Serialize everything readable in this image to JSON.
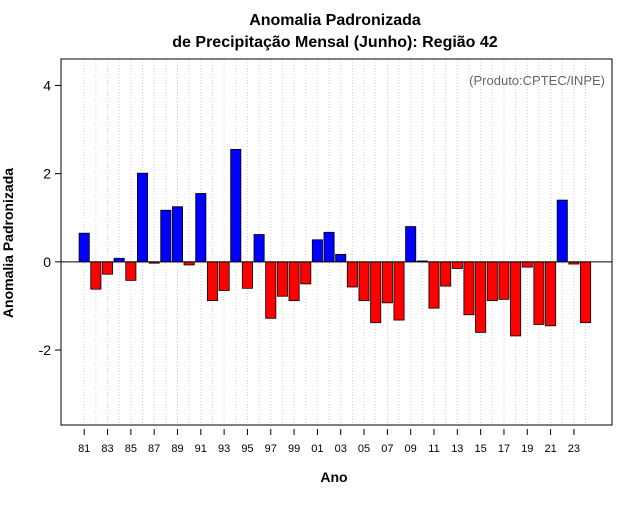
{
  "chart_data": {
    "type": "bar",
    "title_line1": "Anomalia Padronizada",
    "title_line2": "de Precipitação Mensal (Junho): Região 42",
    "xlabel": "Ano",
    "ylabel": "Anomalia Padronizada",
    "credit": "(Produto:CPTEC/INPE)",
    "ylim": [
      -3.7,
      4.6
    ],
    "yticks": [
      -2,
      0,
      2,
      4
    ],
    "ytick_labels": [
      "-2",
      "0",
      "2",
      "4"
    ],
    "grid": "vertical dotted",
    "positive_color": "#0000ff",
    "negative_color": "#ff0000",
    "categories": [
      "81",
      "82",
      "83",
      "84",
      "85",
      "86",
      "87",
      "88",
      "89",
      "90",
      "91",
      "92",
      "93",
      "94",
      "95",
      "96",
      "97",
      "98",
      "99",
      "00",
      "01",
      "02",
      "03",
      "04",
      "05",
      "06",
      "07",
      "08",
      "09",
      "10",
      "11",
      "12",
      "13",
      "14",
      "15",
      "16",
      "17",
      "18",
      "19",
      "20",
      "21",
      "22",
      "23",
      "24"
    ],
    "xtick_labels": [
      "81",
      "83",
      "85",
      "87",
      "89",
      "91",
      "93",
      "95",
      "97",
      "99",
      "01",
      "03",
      "05",
      "07",
      "09",
      "11",
      "13",
      "15",
      "17",
      "19",
      "21",
      "23"
    ],
    "values": [
      0.65,
      -0.62,
      -0.28,
      0.08,
      -0.42,
      2.01,
      -0.03,
      1.17,
      1.25,
      -0.07,
      1.55,
      -0.88,
      -0.65,
      2.55,
      -0.6,
      0.62,
      -1.28,
      -0.78,
      -0.88,
      -0.5,
      0.5,
      0.67,
      0.17,
      -0.57,
      -0.88,
      -1.38,
      -0.93,
      -1.32,
      0.8,
      0.02,
      -1.05,
      -0.55,
      -0.15,
      -1.2,
      -1.6,
      -0.88,
      -0.85,
      -1.68,
      -0.12,
      -1.42,
      -1.45,
      1.4,
      -0.05,
      -1.38
    ]
  }
}
